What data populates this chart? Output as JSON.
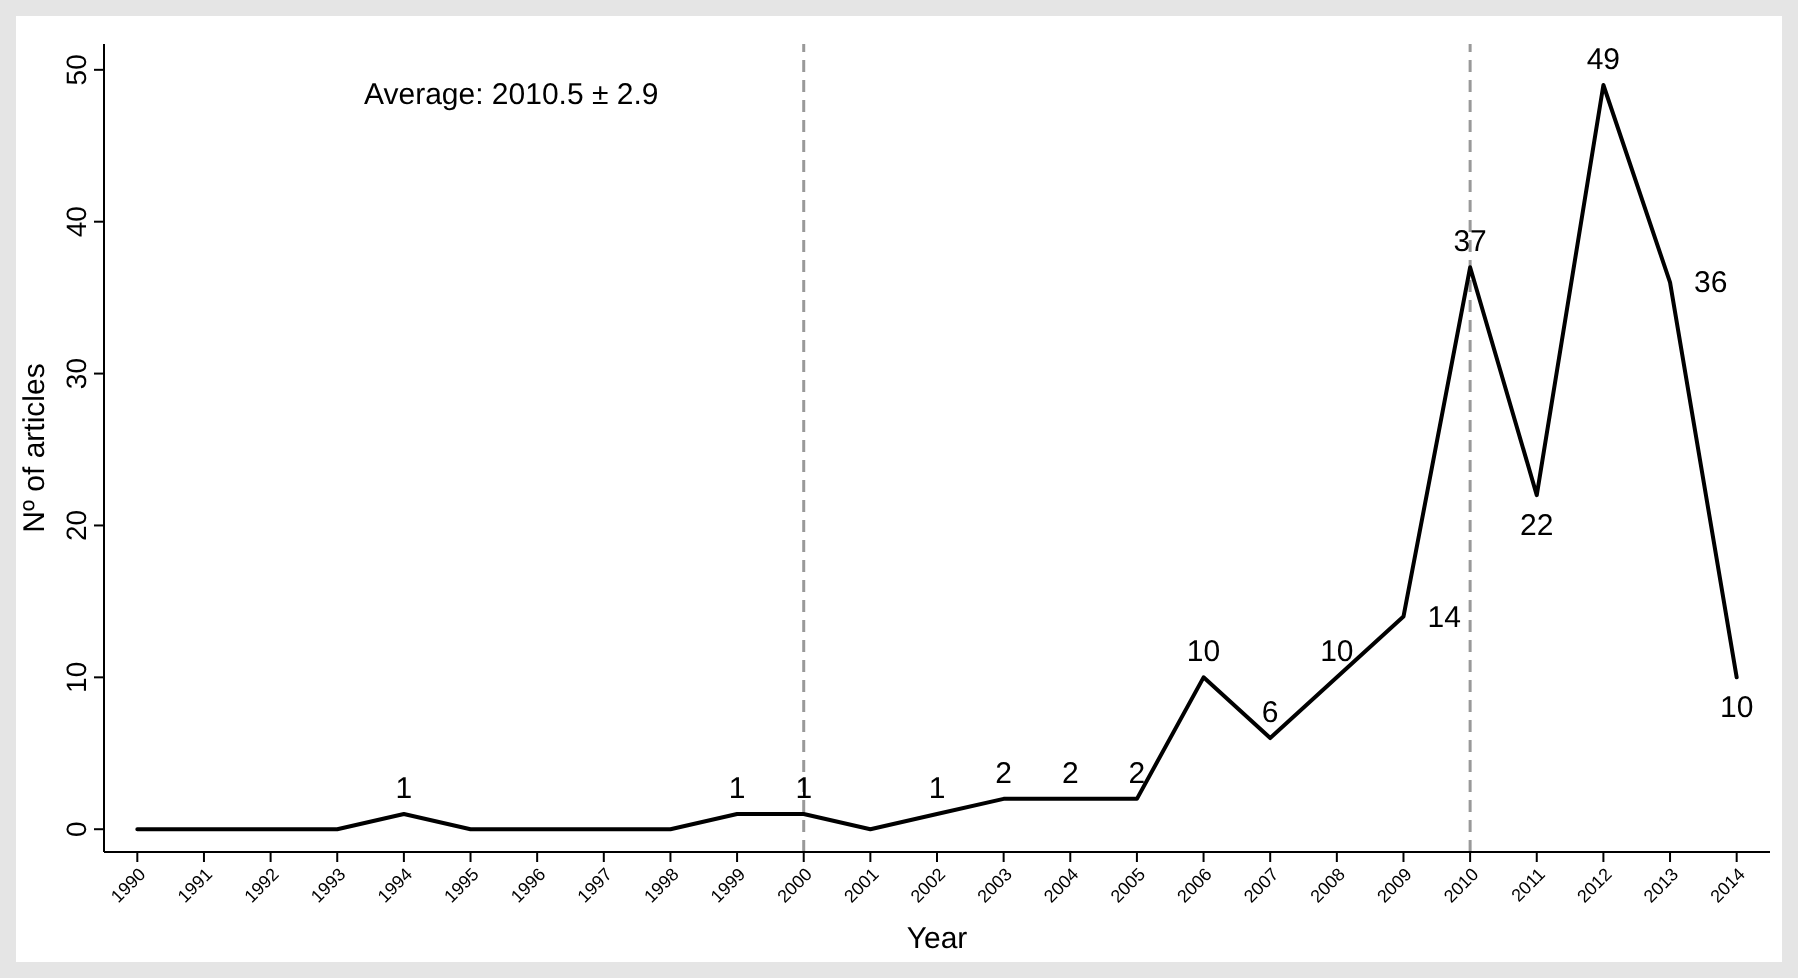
{
  "chart_data": {
    "type": "line",
    "xlabel": "Year",
    "ylabel": "Nº of articles",
    "x": [
      1990,
      1991,
      1992,
      1993,
      1994,
      1995,
      1996,
      1997,
      1998,
      1999,
      2000,
      2001,
      2002,
      2003,
      2004,
      2005,
      2006,
      2007,
      2008,
      2009,
      2010,
      2011,
      2012,
      2013,
      2014
    ],
    "series": [
      {
        "color": "#000000",
        "values": [
          0,
          0,
          0,
          0,
          1,
          0,
          0,
          0,
          0,
          1,
          1,
          0,
          1,
          2,
          2,
          2,
          10,
          6,
          10,
          14,
          37,
          22,
          49,
          36,
          10
        ],
        "value_labels": [
          null,
          null,
          null,
          null,
          "1",
          null,
          null,
          null,
          null,
          "1",
          "1",
          null,
          "1",
          "2",
          "2",
          "2",
          "10",
          "6",
          "10",
          "14",
          "37",
          "22",
          "49",
          "36",
          "10"
        ]
      }
    ],
    "xlim": [
      1989.5,
      2014.5
    ],
    "ylim": [
      -1.5,
      51.7
    ],
    "xticks": [
      1990,
      1991,
      1992,
      1993,
      1994,
      1995,
      1996,
      1997,
      1998,
      1999,
      2000,
      2001,
      2002,
      2003,
      2004,
      2005,
      2006,
      2007,
      2008,
      2009,
      2010,
      2011,
      2012,
      2013,
      2014
    ],
    "yticks": [
      0,
      10,
      20,
      30,
      40,
      50
    ],
    "ref_lines": [
      {
        "axis": "x",
        "value": 2000,
        "color": "#999999",
        "line_style": "dashed"
      },
      {
        "axis": "x",
        "value": 2010,
        "color": "#999999",
        "line_style": "dashed"
      }
    ],
    "annotations": [
      "Average: 2010.5 ± 2.9"
    ],
    "grid": false,
    "marker": "none",
    "line_style": "solid"
  }
}
